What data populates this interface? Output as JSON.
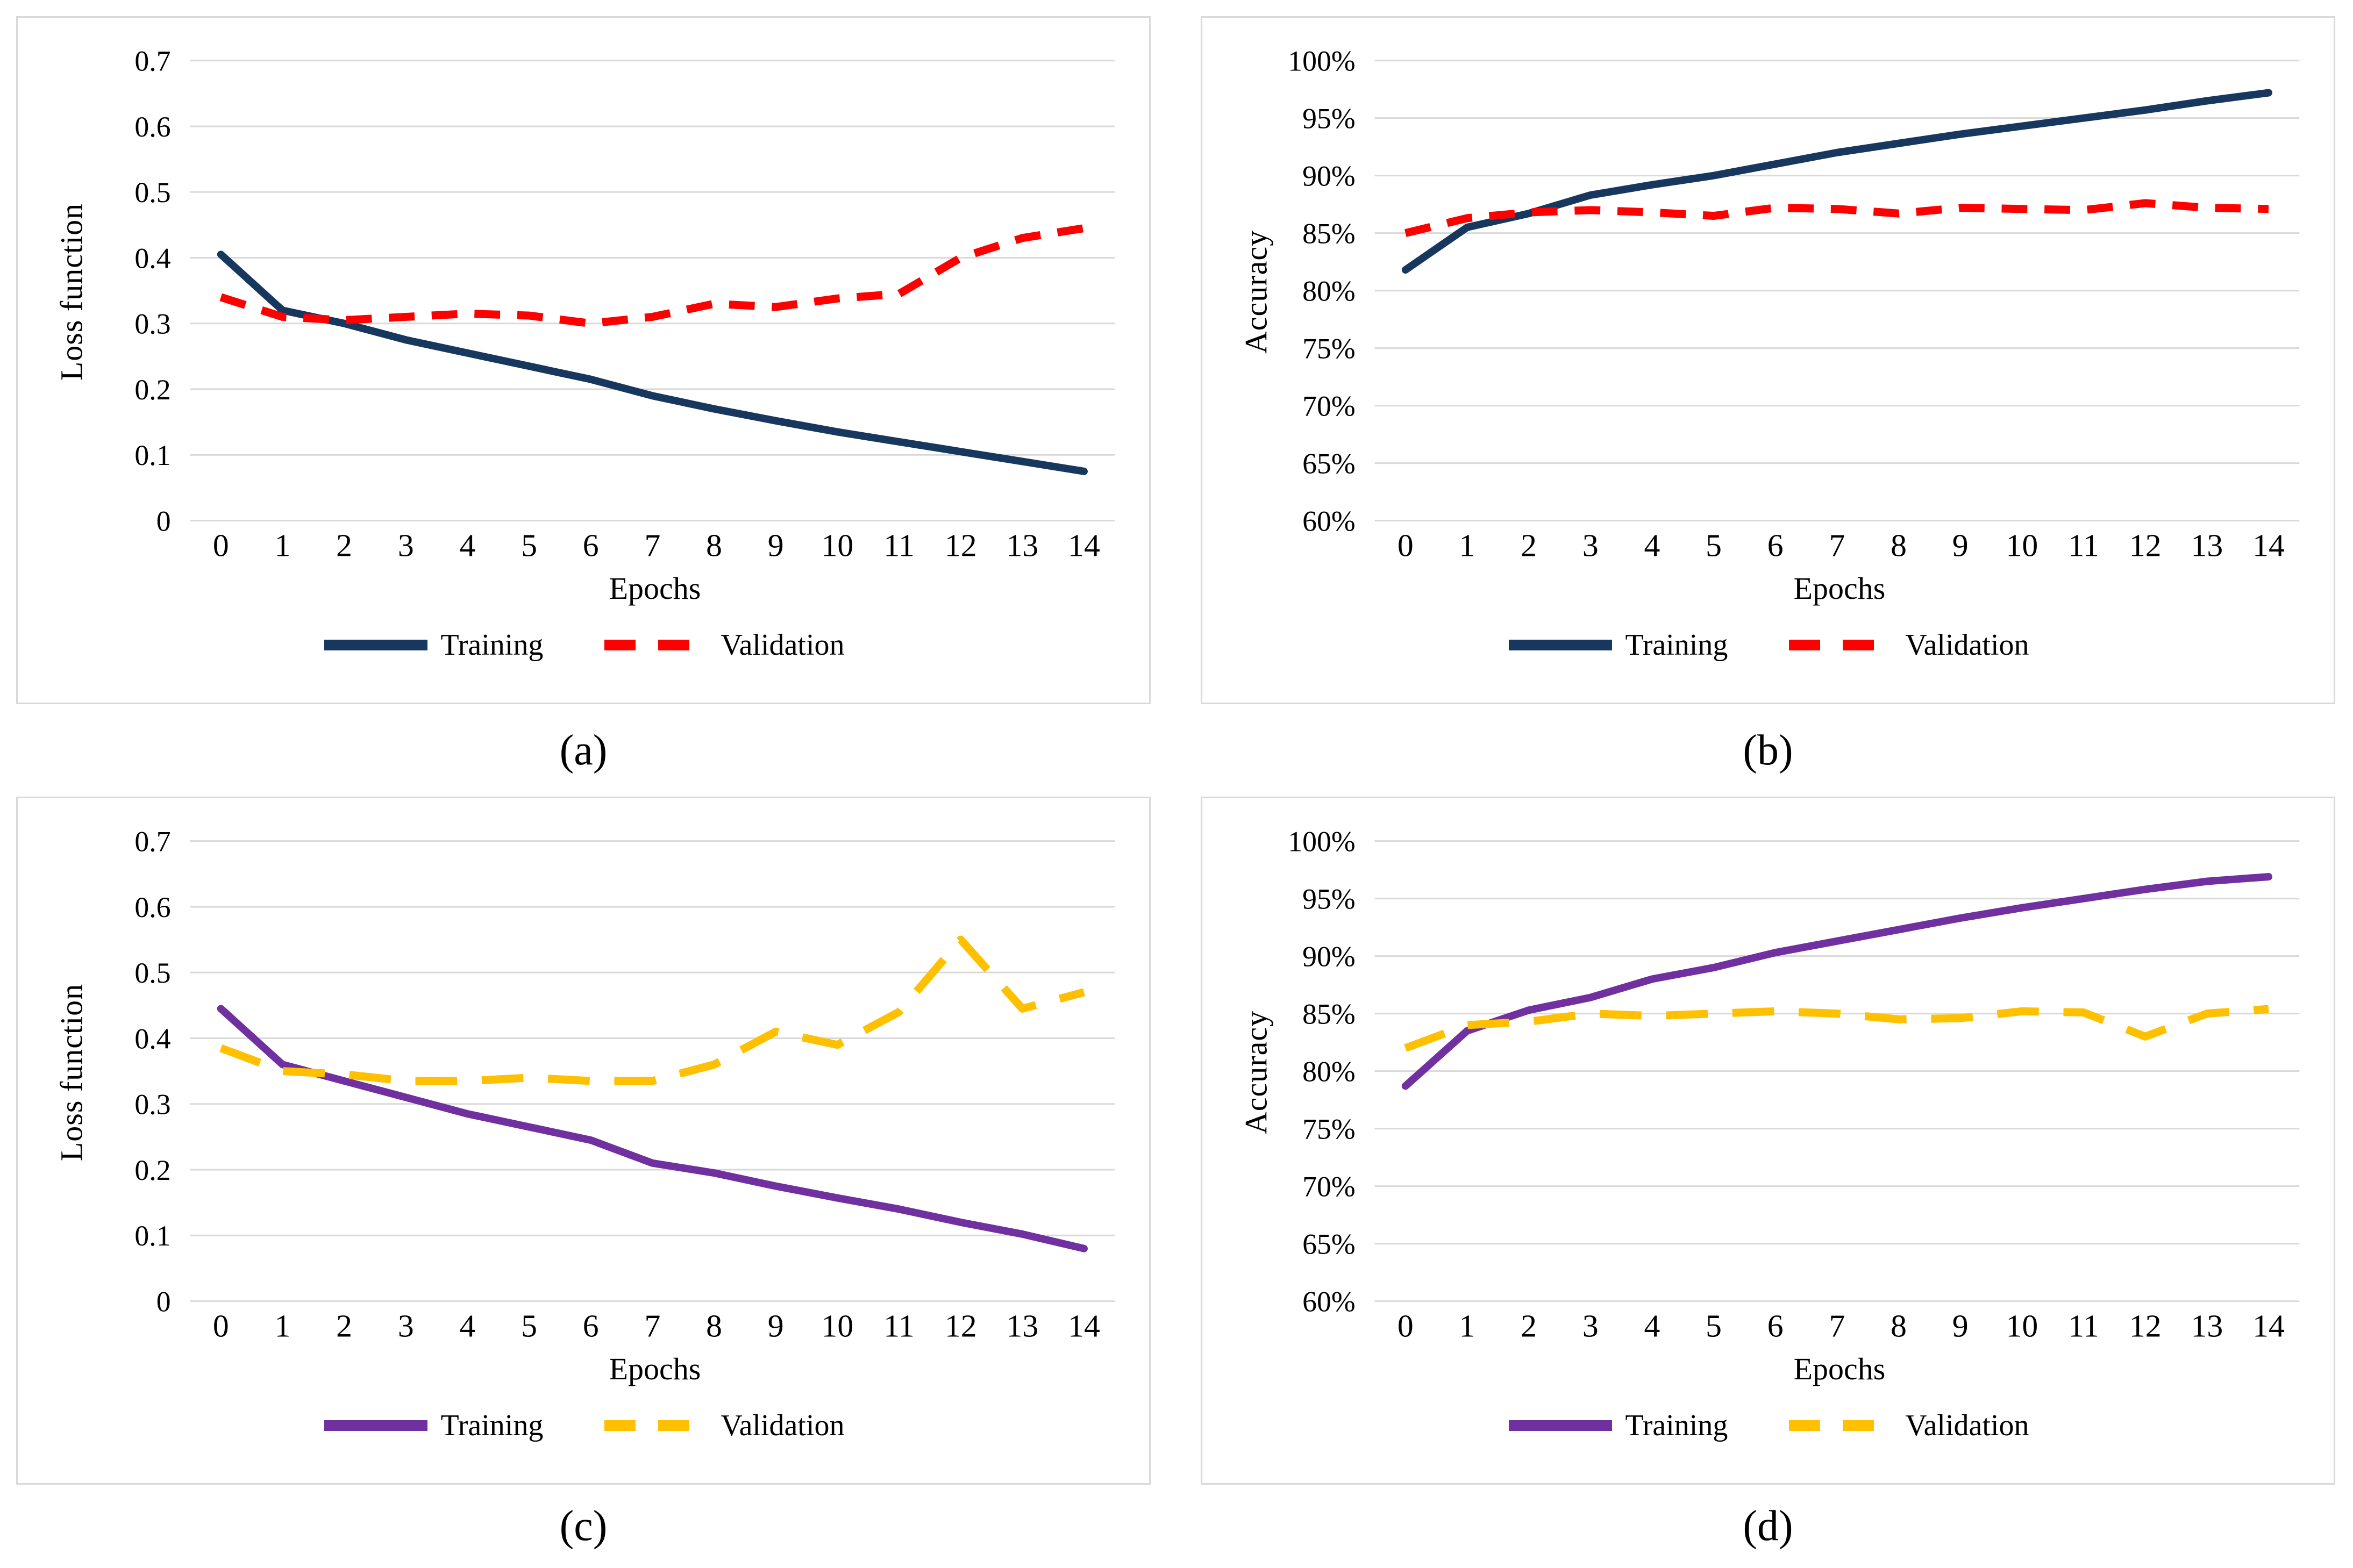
{
  "style": {
    "grid_color": "#D9D9D9",
    "border_color": "#D9D9D9",
    "navy": "#17375E",
    "red": "#FF0000",
    "purple": "#7030A0",
    "gold": "#FFC000"
  },
  "chart_data": [
    {
      "id": "a",
      "type": "line",
      "caption": "(a)",
      "xlabel": "Epochs",
      "ylabel": "Loss function",
      "x": [
        0,
        1,
        2,
        3,
        4,
        5,
        6,
        7,
        8,
        9,
        10,
        11,
        12,
        13,
        14
      ],
      "ylim": [
        0,
        0.7
      ],
      "grid": true,
      "legend_position": "bottom",
      "yticks": [
        {
          "v": 0.7,
          "label": "0.7"
        },
        {
          "v": 0.6,
          "label": "0.6"
        },
        {
          "v": 0.5,
          "label": "0.5"
        },
        {
          "v": 0.4,
          "label": "0.4"
        },
        {
          "v": 0.3,
          "label": "0.3"
        },
        {
          "v": 0.2,
          "label": "0.2"
        },
        {
          "v": 0.1,
          "label": "0.1"
        },
        {
          "v": 0,
          "label": "0"
        }
      ],
      "series": [
        {
          "name": "Training",
          "style": "solid",
          "color": "#17375E",
          "values": [
            0.405,
            0.32,
            0.3,
            0.275,
            0.255,
            0.235,
            0.215,
            0.19,
            0.17,
            0.152,
            0.135,
            0.12,
            0.105,
            0.09,
            0.075
          ]
        },
        {
          "name": "Validation",
          "style": "dashed",
          "color": "#FF0000",
          "dasharray": "48 32",
          "values": [
            0.34,
            0.31,
            0.305,
            0.31,
            0.315,
            0.312,
            0.3,
            0.31,
            0.33,
            0.325,
            0.338,
            0.345,
            0.4,
            0.43,
            0.445
          ]
        }
      ]
    },
    {
      "id": "b",
      "type": "line",
      "caption": "(b)",
      "xlabel": "Epochs",
      "ylabel": "Accuracy",
      "x": [
        0,
        1,
        2,
        3,
        4,
        5,
        6,
        7,
        8,
        9,
        10,
        11,
        12,
        13,
        14
      ],
      "ylim": [
        0.6,
        1.0
      ],
      "grid": true,
      "legend_position": "bottom",
      "yticks": [
        {
          "v": 1.0,
          "label": "100%"
        },
        {
          "v": 0.95,
          "label": "95%"
        },
        {
          "v": 0.9,
          "label": "90%"
        },
        {
          "v": 0.85,
          "label": "85%"
        },
        {
          "v": 0.8,
          "label": "80%"
        },
        {
          "v": 0.75,
          "label": "75%"
        },
        {
          "v": 0.7,
          "label": "70%"
        },
        {
          "v": 0.65,
          "label": "65%"
        },
        {
          "v": 0.6,
          "label": "60%"
        }
      ],
      "series": [
        {
          "name": "Training",
          "style": "solid",
          "color": "#17375E",
          "values": [
            0.818,
            0.855,
            0.867,
            0.883,
            0.892,
            0.9,
            0.91,
            0.92,
            0.928,
            0.936,
            0.943,
            0.95,
            0.957,
            0.965,
            0.972
          ]
        },
        {
          "name": "Validation",
          "style": "dashed",
          "color": "#FF0000",
          "dasharray": "48 32",
          "values": [
            0.85,
            0.863,
            0.868,
            0.87,
            0.868,
            0.865,
            0.872,
            0.871,
            0.867,
            0.872,
            0.871,
            0.87,
            0.876,
            0.872,
            0.871
          ]
        }
      ]
    },
    {
      "id": "c",
      "type": "line",
      "caption": "(c)",
      "xlabel": "Epochs",
      "ylabel": "Loss function",
      "x": [
        0,
        1,
        2,
        3,
        4,
        5,
        6,
        7,
        8,
        9,
        10,
        11,
        12,
        13,
        14
      ],
      "ylim": [
        0,
        0.7
      ],
      "grid": true,
      "legend_position": "bottom",
      "yticks": [
        {
          "v": 0.7,
          "label": "0.7"
        },
        {
          "v": 0.6,
          "label": "0.6"
        },
        {
          "v": 0.5,
          "label": "0.5"
        },
        {
          "v": 0.4,
          "label": "0.4"
        },
        {
          "v": 0.3,
          "label": "0.3"
        },
        {
          "v": 0.2,
          "label": "0.2"
        },
        {
          "v": 0.1,
          "label": "0.1"
        },
        {
          "v": 0,
          "label": "0"
        }
      ],
      "series": [
        {
          "name": "Training",
          "style": "solid",
          "color": "#7030A0",
          "values": [
            0.445,
            0.36,
            0.335,
            0.31,
            0.285,
            0.265,
            0.245,
            0.21,
            0.195,
            0.175,
            0.157,
            0.14,
            0.12,
            0.102,
            0.08
          ]
        },
        {
          "name": "Validation",
          "style": "dashed",
          "color": "#FFC000",
          "dasharray": "78 46",
          "values": [
            0.385,
            0.35,
            0.345,
            0.335,
            0.335,
            0.34,
            0.335,
            0.335,
            0.36,
            0.41,
            0.39,
            0.44,
            0.55,
            0.445,
            0.47
          ]
        }
      ]
    },
    {
      "id": "d",
      "type": "line",
      "caption": "(d)",
      "xlabel": "Epochs",
      "ylabel": "Accuracy",
      "x": [
        0,
        1,
        2,
        3,
        4,
        5,
        6,
        7,
        8,
        9,
        10,
        11,
        12,
        13,
        14
      ],
      "ylim": [
        0.6,
        1.0
      ],
      "grid": true,
      "legend_position": "bottom",
      "yticks": [
        {
          "v": 1.0,
          "label": "100%"
        },
        {
          "v": 0.95,
          "label": "95%"
        },
        {
          "v": 0.9,
          "label": "90%"
        },
        {
          "v": 0.85,
          "label": "85%"
        },
        {
          "v": 0.8,
          "label": "80%"
        },
        {
          "v": 0.75,
          "label": "75%"
        },
        {
          "v": 0.7,
          "label": "70%"
        },
        {
          "v": 0.65,
          "label": "65%"
        },
        {
          "v": 0.6,
          "label": "60%"
        }
      ],
      "series": [
        {
          "name": "Training",
          "style": "solid",
          "color": "#7030A0",
          "values": [
            0.787,
            0.835,
            0.853,
            0.864,
            0.88,
            0.89,
            0.903,
            0.913,
            0.923,
            0.933,
            0.942,
            0.95,
            0.958,
            0.965,
            0.969
          ]
        },
        {
          "name": "Validation",
          "style": "dashed",
          "color": "#FFC000",
          "dasharray": "78 46",
          "values": [
            0.82,
            0.84,
            0.843,
            0.85,
            0.848,
            0.85,
            0.852,
            0.85,
            0.845,
            0.846,
            0.852,
            0.851,
            0.83,
            0.85,
            0.854
          ]
        }
      ]
    }
  ]
}
